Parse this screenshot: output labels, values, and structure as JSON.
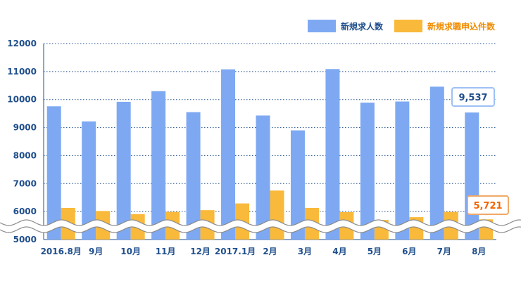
{
  "chart_data": {
    "type": "bar",
    "categories": [
      "2016.8月",
      "9月",
      "10月",
      "11月",
      "12月",
      "2017.1月",
      "2月",
      "3月",
      "4月",
      "5月",
      "6月",
      "7月",
      "8月"
    ],
    "series": [
      {
        "name": "新規求人数",
        "color": "#7ea9f2",
        "values": [
          9760,
          9220,
          9920,
          10300,
          9550,
          11080,
          9430,
          8900,
          11090,
          9890,
          9930,
          10460,
          9537
        ]
      },
      {
        "name": "新規求職申込件数",
        "color": "#f9b93a",
        "values": [
          6130,
          6020,
          5910,
          5990,
          6050,
          6290,
          6750,
          6130,
          5980,
          5700,
          5800,
          5990,
          5721
        ]
      }
    ],
    "ylim": [
      5000,
      12000
    ],
    "yticks": [
      "5000",
      "6000",
      "7000",
      "8000",
      "9000",
      "10000",
      "11000",
      "12000"
    ],
    "grid": true,
    "legend": "top-right",
    "axis_break": true,
    "callouts": [
      {
        "series": 0,
        "index": 12,
        "label": "9,537"
      },
      {
        "series": 1,
        "index": 12,
        "label": "5,721"
      }
    ]
  }
}
